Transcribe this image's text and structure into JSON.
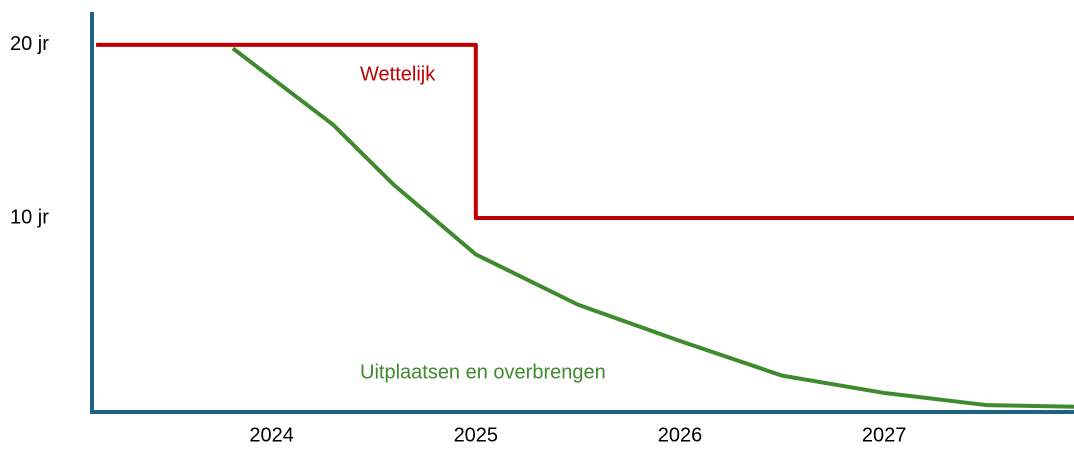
{
  "chart_data": {
    "type": "line",
    "xlim": [
      2023.12,
      2027.93
    ],
    "xticks": [
      2024,
      2025,
      2026,
      2027
    ],
    "ylim": [
      -1.2,
      21.9
    ],
    "yticks": [
      {
        "value": 20,
        "label": "20 jr"
      },
      {
        "value": 10,
        "label": "10 jr"
      }
    ],
    "grid": false,
    "axis_color": "#1f6282",
    "series": [
      {
        "name": "Wettelijk",
        "color": "#c00000",
        "x": [
          2023.14,
          2025,
          2025,
          2027.93
        ],
        "values": [
          20,
          20,
          10,
          10
        ]
      },
      {
        "name": "Uitplaatsen en overbrengen",
        "color": "#3f8a2e",
        "x": [
          2023.81,
          2024.3,
          2024.6,
          2025,
          2025.5,
          2026,
          2026.5,
          2027,
          2027.5,
          2027.93
        ],
        "values": [
          19.8,
          15.4,
          11.9,
          7.9,
          5.0,
          2.9,
          0.9,
          -0.1,
          -0.8,
          -0.9
        ]
      }
    ]
  }
}
